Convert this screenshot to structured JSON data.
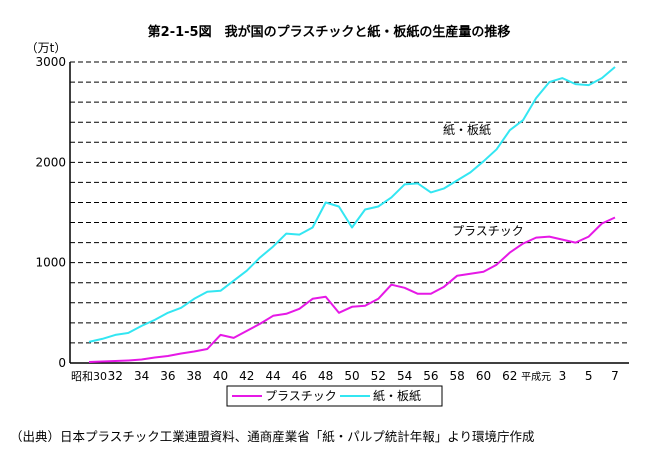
{
  "chart_data": {
    "type": "line",
    "title": "第2-1-5図　我が国のプラスチックと紙・板紙の生産量の推移",
    "ylabel": "（万t）",
    "xlabel": "",
    "ylim": [
      0,
      3000
    ],
    "yticks": [
      0,
      1000,
      2000,
      3000
    ],
    "grid": true,
    "legend": "bottom-center",
    "x": [
      "昭和30",
      "31",
      "32",
      "33",
      "34",
      "35",
      "36",
      "37",
      "38",
      "39",
      "40",
      "41",
      "42",
      "43",
      "44",
      "45",
      "46",
      "47",
      "48",
      "49",
      "50",
      "51",
      "52",
      "53",
      "54",
      "55",
      "56",
      "57",
      "58",
      "59",
      "60",
      "61",
      "62",
      "63",
      "平成元",
      "2",
      "3",
      "4",
      "5",
      "6",
      "7"
    ],
    "x_tick_labels": [
      "昭和30",
      "32",
      "34",
      "36",
      "38",
      "40",
      "42",
      "44",
      "46",
      "48",
      "50",
      "52",
      "54",
      "56",
      "58",
      "60",
      "62",
      "平成元",
      "3",
      "5",
      "7"
    ],
    "series": [
      {
        "name": "プラスチック",
        "color": "#e619e6",
        "values": [
          10,
          15,
          20,
          25,
          35,
          55,
          70,
          95,
          115,
          140,
          280,
          250,
          320,
          390,
          470,
          490,
          540,
          640,
          660,
          500,
          560,
          570,
          640,
          780,
          750,
          690,
          690,
          760,
          870,
          890,
          910,
          980,
          1100,
          1190,
          1250,
          1260,
          1230,
          1200,
          1260,
          1390,
          1450
        ]
      },
      {
        "name": "紙・板紙",
        "color": "#33e6f2",
        "values": [
          210,
          240,
          280,
          300,
          370,
          430,
          500,
          550,
          640,
          710,
          720,
          820,
          920,
          1050,
          1160,
          1290,
          1280,
          1350,
          1600,
          1560,
          1350,
          1530,
          1560,
          1650,
          1780,
          1790,
          1700,
          1740,
          1820,
          1900,
          2010,
          2130,
          2320,
          2420,
          2640,
          2800,
          2840,
          2780,
          2770,
          2840,
          2950
        ]
      }
    ],
    "annotations": [
      "紙・板紙",
      "プラスチック"
    ]
  },
  "source_note": "（出典）日本プラスチック工業連盟資料、通商産業省「紙・パルプ統計年報」より環境庁作成"
}
